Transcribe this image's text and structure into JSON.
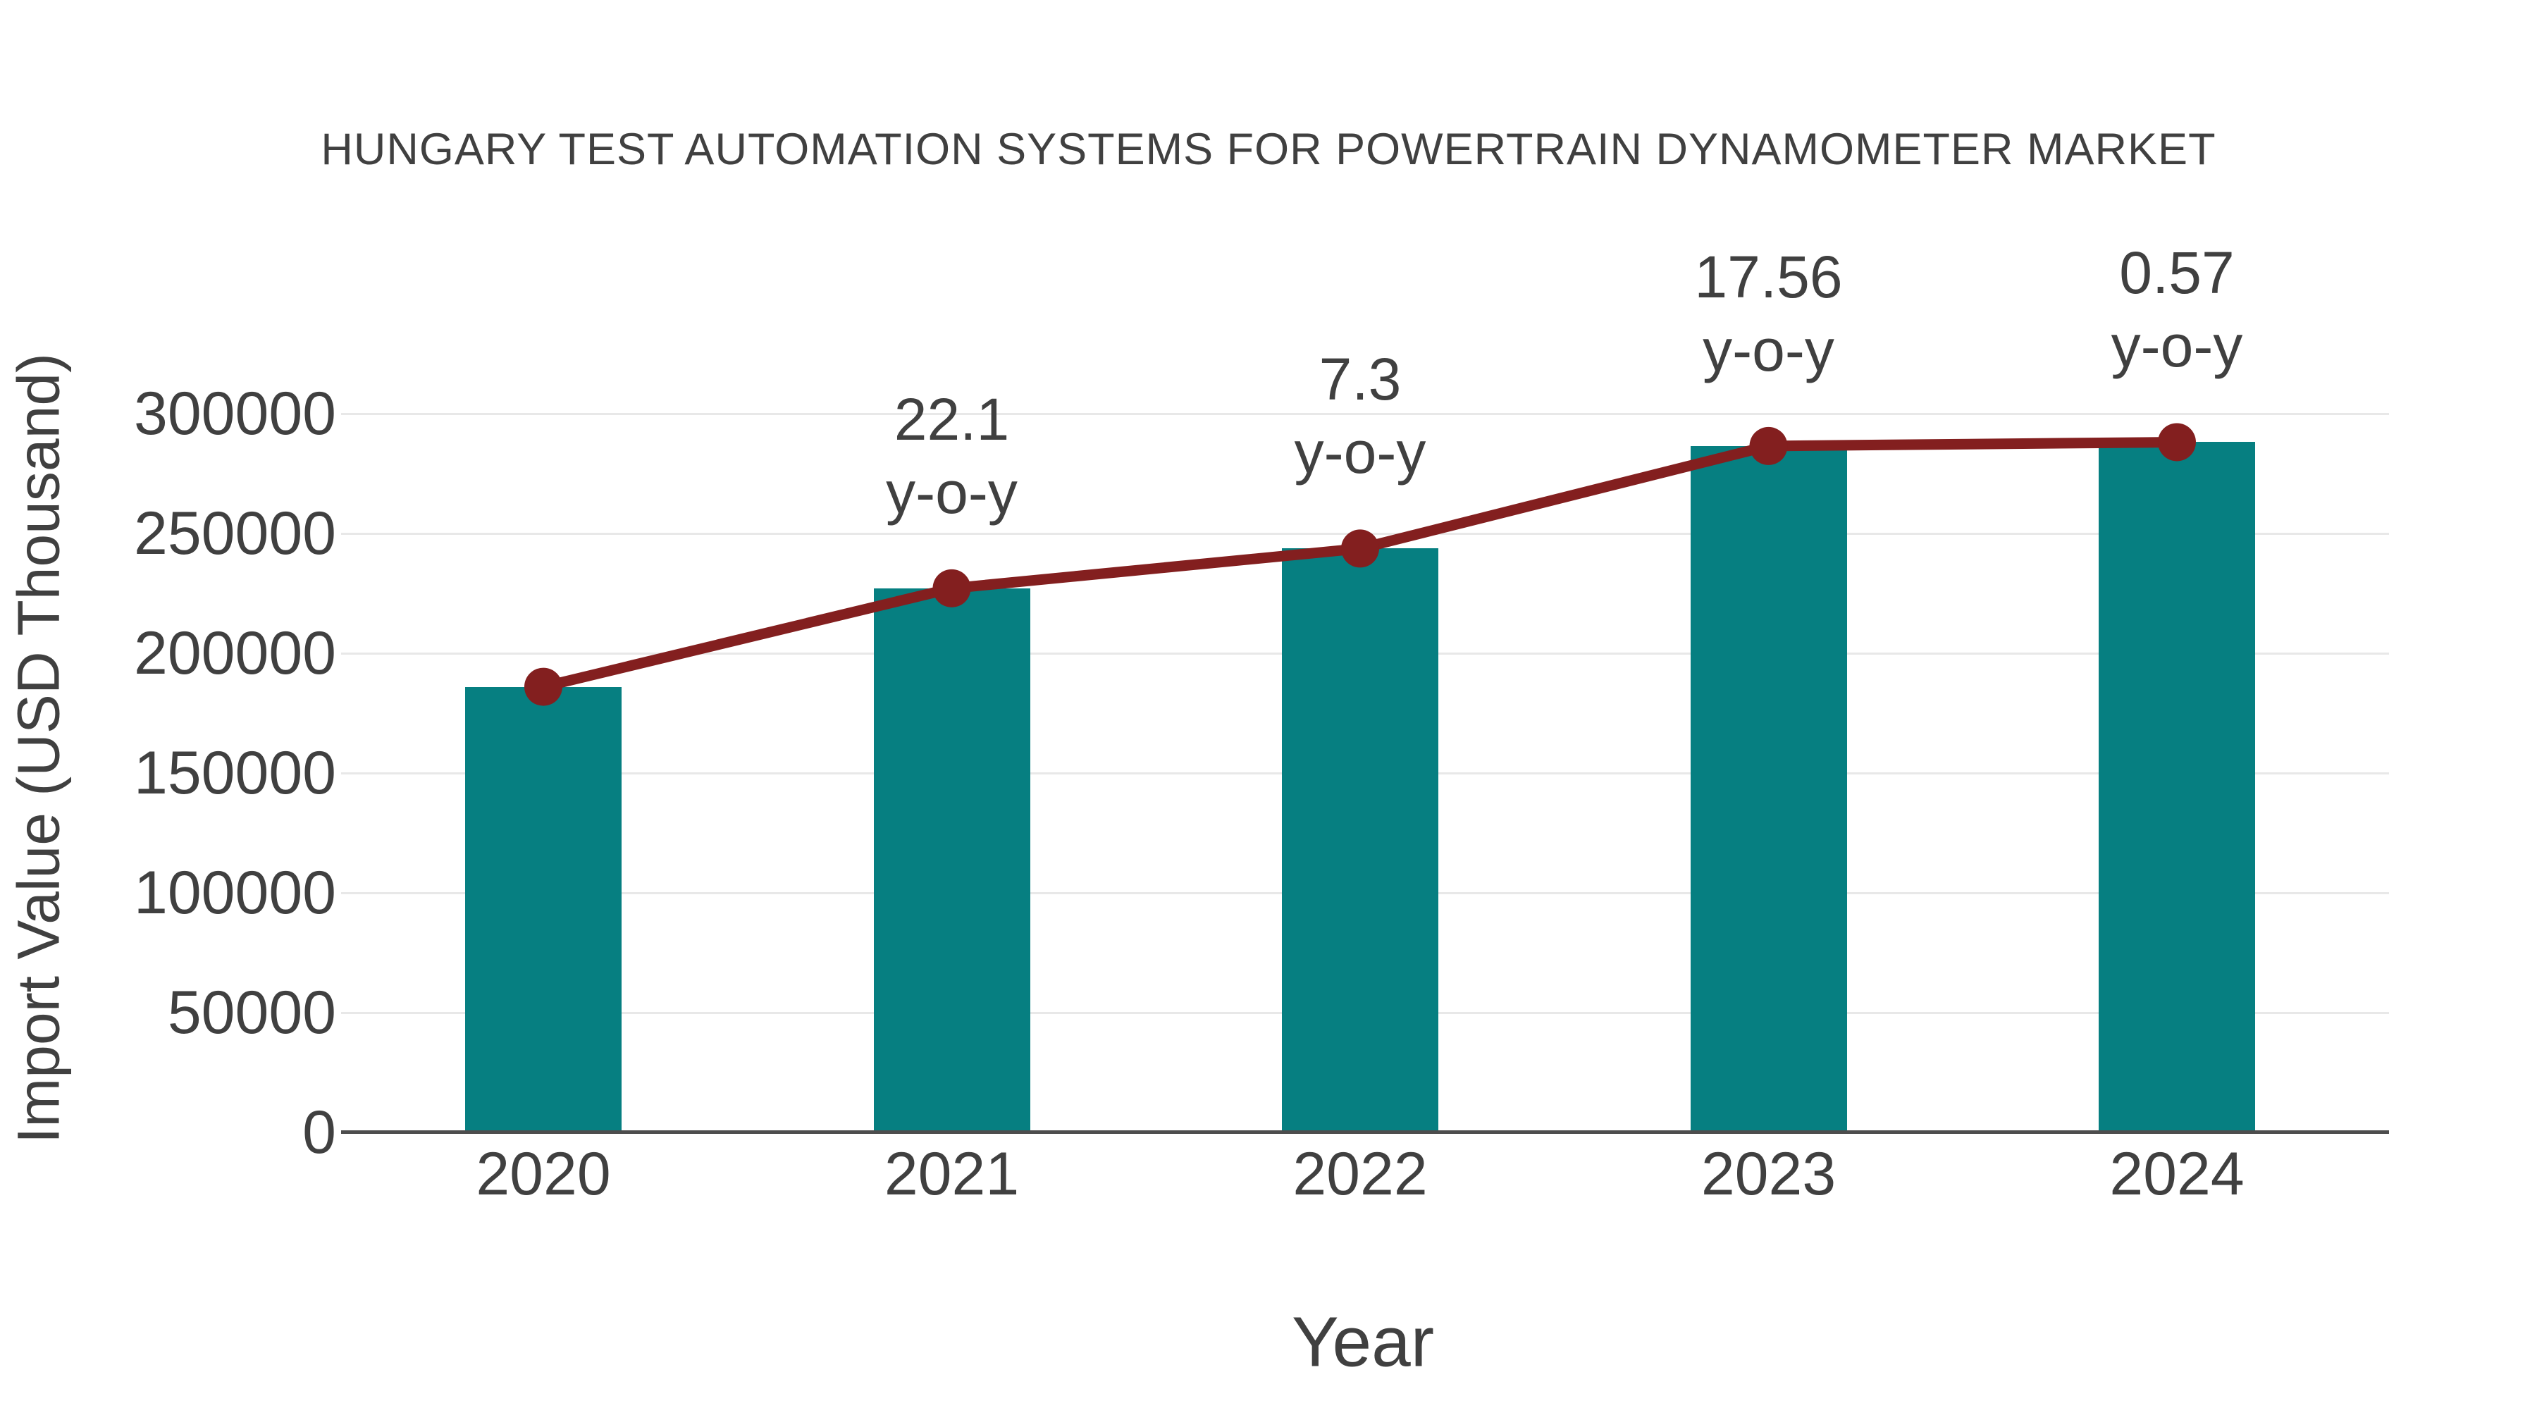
{
  "chart_data": {
    "type": "bar",
    "title": "HUNGARY TEST AUTOMATION SYSTEMS FOR POWERTRAIN DYNAMOMETER MARKET",
    "xlabel": "Year",
    "ylabel": "Import Value (USD Thousand)",
    "categories": [
      "2020",
      "2021",
      "2022",
      "2023",
      "2024"
    ],
    "series": [
      {
        "name": "Import Value bars",
        "type": "bar",
        "values": [
          186000,
          227100,
          243700,
          286500,
          288100
        ]
      },
      {
        "name": "Import Value trend line",
        "type": "line",
        "values": [
          186000,
          227100,
          243700,
          286500,
          288100
        ]
      }
    ],
    "annotations": [
      {
        "category": "2021",
        "line1": "22.1",
        "line2": "y-o-y"
      },
      {
        "category": "2022",
        "line1": "7.3",
        "line2": "y-o-y"
      },
      {
        "category": "2023",
        "line1": "17.56",
        "line2": "y-o-y"
      },
      {
        "category": "2024",
        "line1": "0.57",
        "line2": "y-o-y"
      }
    ],
    "yticks": [
      "0",
      "50000",
      "100000",
      "150000",
      "200000",
      "250000",
      "300000"
    ],
    "ylim": [
      0,
      350000
    ],
    "grid": true,
    "legend_position": "none",
    "colors": {
      "bar": "#067f81",
      "line": "#831f1f",
      "marker": "#831f1f",
      "text": "#404040",
      "gridline": "#e8e8e8",
      "axisline": "#4d4d4d",
      "background": "#ffffff"
    }
  }
}
